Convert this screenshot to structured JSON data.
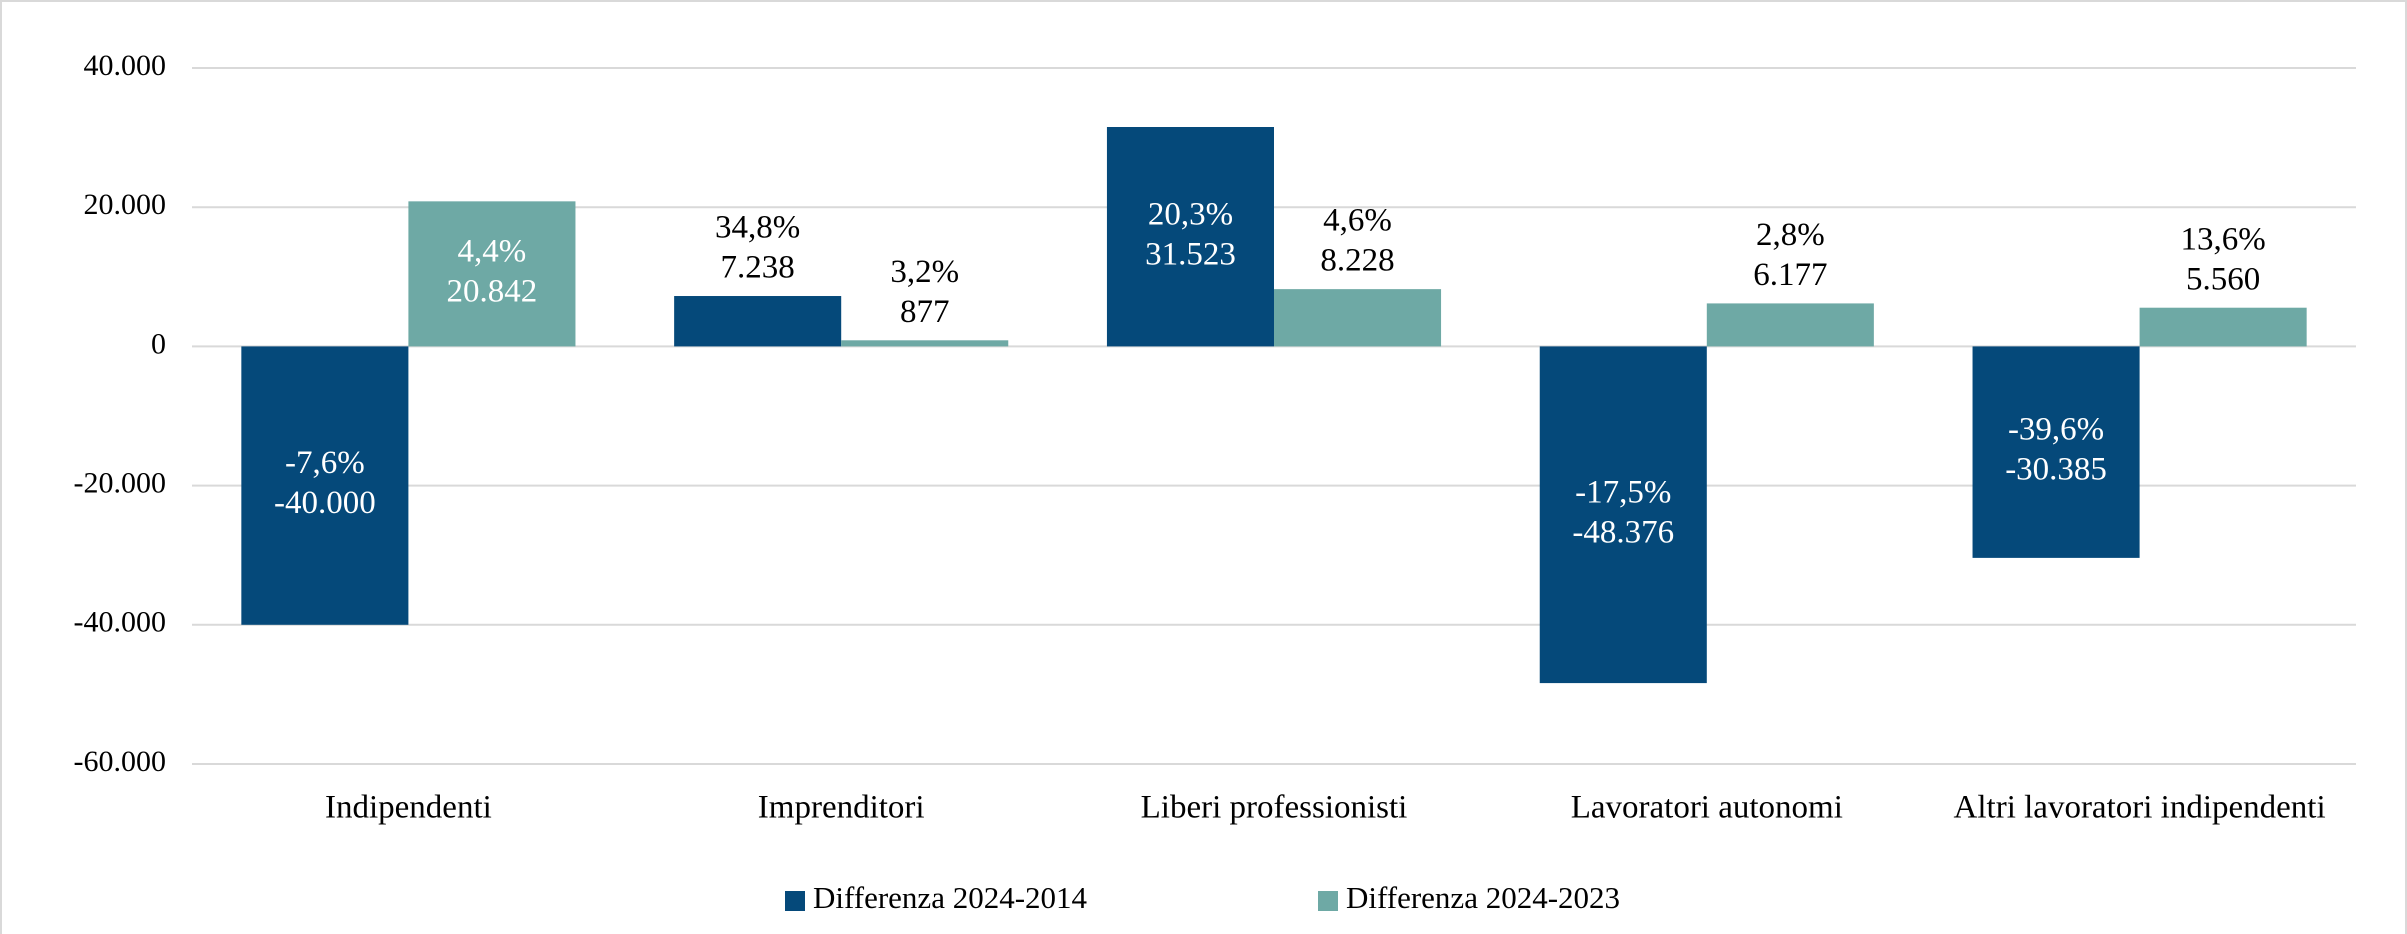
{
  "chart_data": {
    "type": "bar",
    "categories": [
      "Indipendenti",
      "Imprenditori",
      "Liberi professionisti",
      "Lavoratori autonomi",
      "Altri lavoratori indipendenti"
    ],
    "series": [
      {
        "name": "Differenza 2024-2014",
        "color": "#05497a",
        "values": [
          -40000,
          7238,
          31523,
          -48376,
          -30385
        ],
        "value_labels": [
          "-40.000",
          "7.238",
          "31.523",
          "-48.376",
          "-30.385"
        ],
        "percent_labels": [
          "-7,6%",
          "34,8%",
          "20,3%",
          "-17,5%",
          "-39,6%"
        ]
      },
      {
        "name": "Differenza 2024-2023",
        "color": "#6ea9a5",
        "values": [
          20842,
          877,
          8228,
          6177,
          5560
        ],
        "value_labels": [
          "20.842",
          "877",
          "8.228",
          "6.177",
          "5.560"
        ],
        "percent_labels": [
          "4,4%",
          "3,2%",
          "4,6%",
          "2,8%",
          "13,6%"
        ]
      }
    ],
    "ylim": [
      -60000,
      40000
    ],
    "yticks": [
      {
        "value": -60000,
        "label": "-60.000"
      },
      {
        "value": -40000,
        "label": "-40.000"
      },
      {
        "value": -20000,
        "label": "-20.000"
      },
      0,
      {
        "value": 20000,
        "label": "20.000"
      },
      {
        "value": 40000,
        "label": "40.000"
      }
    ],
    "grid": true,
    "legend": "bottom"
  }
}
